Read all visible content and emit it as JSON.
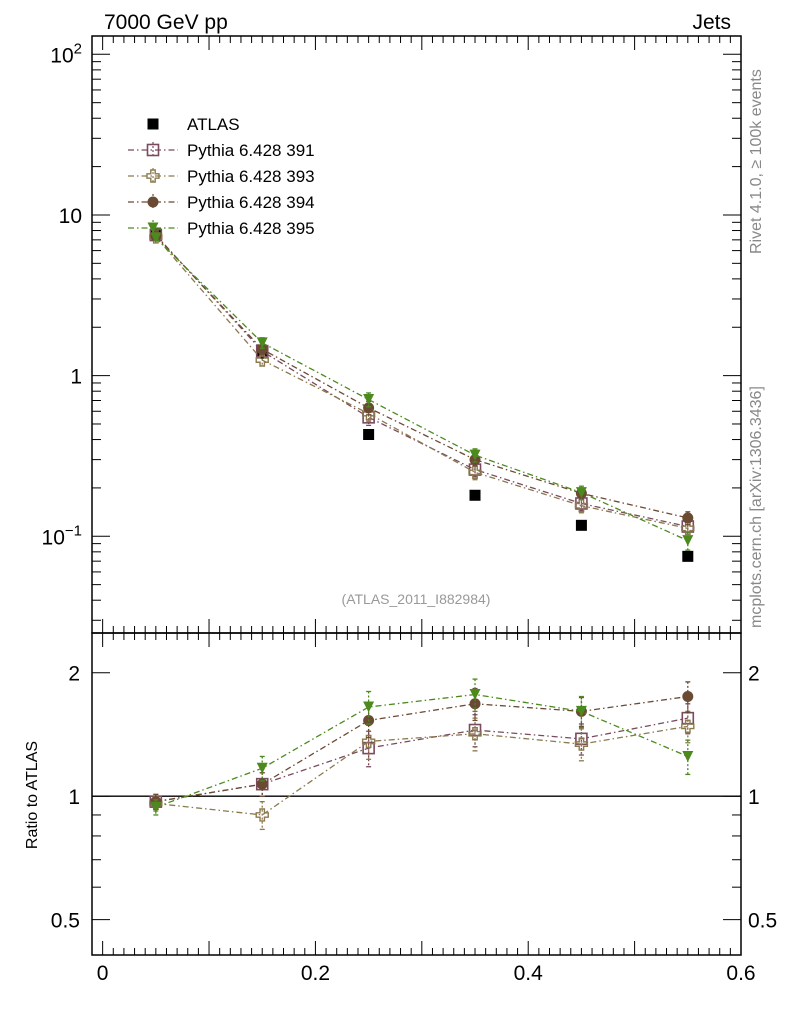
{
  "header": {
    "left": "7000 GeV pp",
    "right": "Jets"
  },
  "side_labels": {
    "rivet": "Rivet 4.1.0, ≥ 100k events",
    "source": "mcplots.cern.ch [arXiv:1306.3436]"
  },
  "analysis_id": "(ATLAS_2011_I882984)",
  "colors": {
    "atlas": "#000000",
    "p391": "#7a4b5e",
    "p393": "#8c7a4e",
    "p394": "#6b4a34",
    "p395": "#4c8a1e"
  },
  "chart_data": [
    {
      "type": "scatter",
      "panel": "main",
      "yscale": "log",
      "xlim": [
        -0.01,
        0.6
      ],
      "ylim": [
        0.025,
        130
      ],
      "x_ticks": [
        "0",
        "0.2",
        "0.4",
        "0.6"
      ],
      "y_ticks": [
        {
          "value": 100,
          "base": "10",
          "exp": "2"
        },
        {
          "value": 10,
          "base": "10",
          "exp": ""
        },
        {
          "value": 1,
          "base": "1",
          "exp": ""
        },
        {
          "value": 0.1,
          "base": "10",
          "exp": "−1"
        }
      ],
      "x": [
        0.05,
        0.15,
        0.25,
        0.35,
        0.45,
        0.55
      ],
      "series": [
        {
          "name": "ATLAS",
          "key": "atlas",
          "marker": "square-filled",
          "values": [
            7.6,
            1.38,
            0.43,
            0.18,
            0.117,
            0.075
          ],
          "errors": [
            0.25,
            0.05,
            0.02,
            0.009,
            0.006,
            0.005
          ]
        },
        {
          "name": "Pythia 6.428 391",
          "key": "p391",
          "marker": "square-open",
          "values": [
            7.5,
            1.42,
            0.55,
            0.26,
            0.16,
            0.115
          ],
          "errors": [
            0.3,
            0.1,
            0.06,
            0.025,
            0.015,
            0.012
          ]
        },
        {
          "name": "Pythia 6.428 393",
          "key": "p393",
          "marker": "cross-open",
          "values": [
            7.3,
            1.25,
            0.58,
            0.25,
            0.155,
            0.112
          ],
          "errors": [
            0.3,
            0.1,
            0.06,
            0.025,
            0.015,
            0.012
          ]
        },
        {
          "name": "Pythia 6.428 394",
          "key": "p394",
          "marker": "circle-filled",
          "values": [
            7.4,
            1.46,
            0.63,
            0.3,
            0.185,
            0.13
          ],
          "errors": [
            0.3,
            0.1,
            0.06,
            0.025,
            0.015,
            0.012
          ]
        },
        {
          "name": "Pythia 6.428 395",
          "key": "p395",
          "marker": "triangle-down-filled",
          "values": [
            7.2,
            1.6,
            0.71,
            0.32,
            0.187,
            0.094
          ],
          "errors": [
            0.3,
            0.12,
            0.07,
            0.03,
            0.018,
            0.012
          ]
        }
      ]
    },
    {
      "type": "scatter",
      "panel": "ratio",
      "ylabel": "Ratio to ATLAS",
      "yscale": "log",
      "xlim": [
        -0.01,
        0.6
      ],
      "ylim": [
        0.41,
        2.5
      ],
      "reference_line": 1,
      "x_ticks": [
        "0",
        "0.2",
        "0.4",
        "0.6"
      ],
      "y_ticks": [
        "0.5",
        "1",
        "2"
      ],
      "x": [
        0.05,
        0.15,
        0.25,
        0.35,
        0.45,
        0.55
      ],
      "series": [
        {
          "name": "Pythia 6.428 391",
          "key": "p391",
          "marker": "square-open",
          "values": [
            0.97,
            1.07,
            1.31,
            1.45,
            1.38,
            1.55
          ],
          "errors": [
            0.04,
            0.07,
            0.13,
            0.13,
            0.12,
            0.13
          ]
        },
        {
          "name": "Pythia 6.428 393",
          "key": "p393",
          "marker": "cross-open",
          "values": [
            0.96,
            0.9,
            1.36,
            1.42,
            1.34,
            1.48
          ],
          "errors": [
            0.04,
            0.07,
            0.13,
            0.13,
            0.12,
            0.13
          ]
        },
        {
          "name": "Pythia 6.428 394",
          "key": "p394",
          "marker": "circle-filled",
          "values": [
            0.97,
            1.07,
            1.53,
            1.68,
            1.61,
            1.75
          ],
          "errors": [
            0.04,
            0.07,
            0.14,
            0.15,
            0.13,
            0.15
          ]
        },
        {
          "name": "Pythia 6.428 395",
          "key": "p395",
          "marker": "triangle-down-filled",
          "values": [
            0.94,
            1.17,
            1.65,
            1.77,
            1.61,
            1.25
          ],
          "errors": [
            0.04,
            0.08,
            0.15,
            0.16,
            0.14,
            0.12
          ]
        }
      ]
    }
  ]
}
